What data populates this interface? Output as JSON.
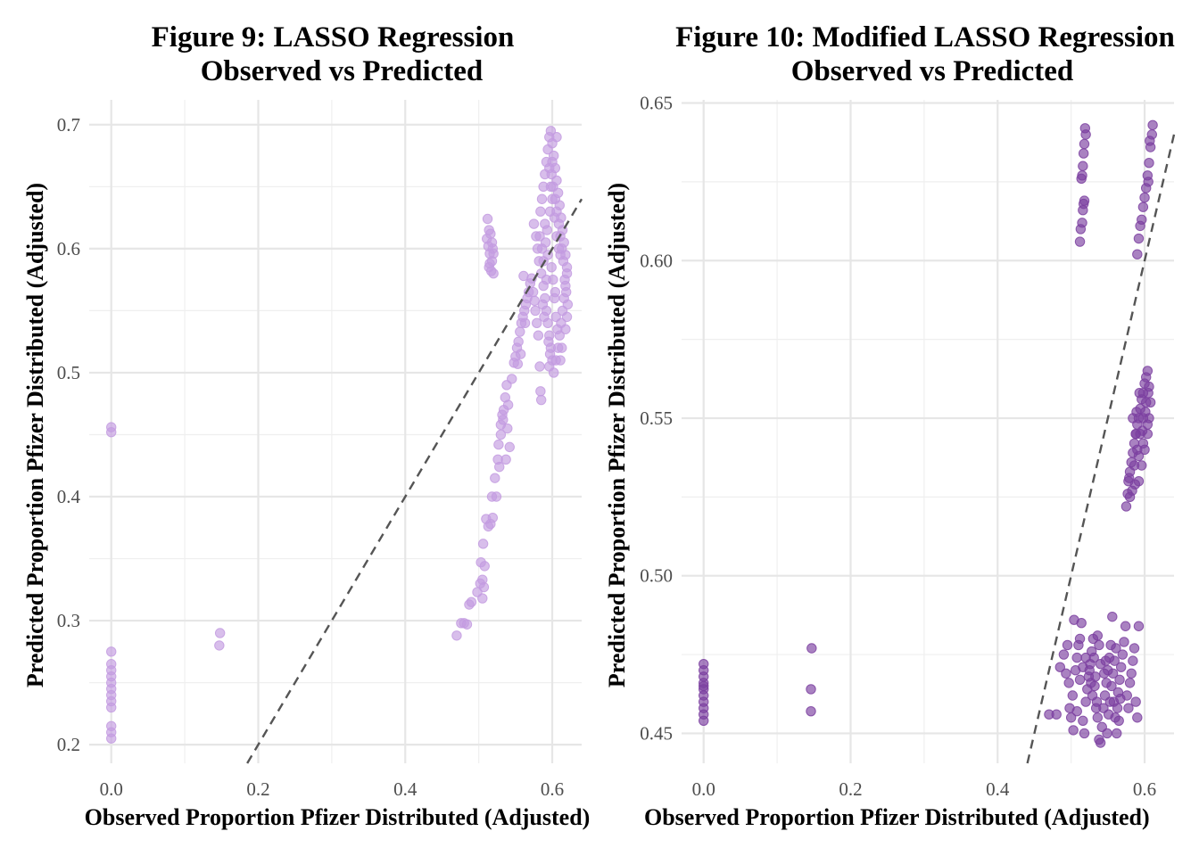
{
  "colors": {
    "fig9_points": "#c39be0",
    "fig10_points": "#7b3fa0",
    "grid_major": "#e6e6e6",
    "grid_minor": "#efefef",
    "reference_line": "#555555"
  },
  "chart_data": [
    {
      "type": "scatter",
      "title_line1": "Figure 9: LASSO Regression",
      "title_line2": "Observed vs Predicted",
      "xlabel": "Observed Proportion Pfizer Distributed (Adjusted)",
      "ylabel": "Predicted Proportion Pfizer Distributed (Adjusted)",
      "xlim": [
        -0.03,
        0.64
      ],
      "ylim": [
        0.185,
        0.72
      ],
      "xticks": [
        0.0,
        0.2,
        0.4,
        0.6
      ],
      "xtick_labels": [
        "0.0",
        "0.2",
        "0.4",
        "0.6"
      ],
      "yticks": [
        0.2,
        0.3,
        0.4,
        0.5,
        0.6,
        0.7
      ],
      "ytick_labels": [
        "0.2",
        "0.3",
        "0.4",
        "0.5",
        "0.6",
        "0.7"
      ],
      "grid": true,
      "reference_line": "y = x, dashed",
      "points": [
        [
          0.0,
          0.456
        ],
        [
          0.0,
          0.452
        ],
        [
          0.0,
          0.275
        ],
        [
          0.0,
          0.265
        ],
        [
          0.0,
          0.26
        ],
        [
          0.0,
          0.255
        ],
        [
          0.0,
          0.25
        ],
        [
          0.0,
          0.245
        ],
        [
          0.0,
          0.24
        ],
        [
          0.0,
          0.235
        ],
        [
          0.0,
          0.23
        ],
        [
          0.0,
          0.215
        ],
        [
          0.0,
          0.21
        ],
        [
          0.0,
          0.205
        ],
        [
          0.148,
          0.29
        ],
        [
          0.147,
          0.28
        ],
        [
          0.47,
          0.288
        ],
        [
          0.476,
          0.298
        ],
        [
          0.48,
          0.298
        ],
        [
          0.484,
          0.297
        ],
        [
          0.487,
          0.313
        ],
        [
          0.49,
          0.315
        ],
        [
          0.498,
          0.323
        ],
        [
          0.502,
          0.33
        ],
        [
          0.505,
          0.333
        ],
        [
          0.507,
          0.327
        ],
        [
          0.505,
          0.318
        ],
        [
          0.503,
          0.347
        ],
        [
          0.508,
          0.344
        ],
        [
          0.506,
          0.362
        ],
        [
          0.51,
          0.382
        ],
        [
          0.513,
          0.376
        ],
        [
          0.516,
          0.378
        ],
        [
          0.519,
          0.383
        ],
        [
          0.518,
          0.4
        ],
        [
          0.524,
          0.4
        ],
        [
          0.522,
          0.415
        ],
        [
          0.526,
          0.43
        ],
        [
          0.528,
          0.424
        ],
        [
          0.527,
          0.442
        ],
        [
          0.53,
          0.45
        ],
        [
          0.53,
          0.458
        ],
        [
          0.533,
          0.462
        ],
        [
          0.534,
          0.47
        ],
        [
          0.536,
          0.48
        ],
        [
          0.538,
          0.49
        ],
        [
          0.54,
          0.474
        ],
        [
          0.542,
          0.44
        ],
        [
          0.537,
          0.43
        ],
        [
          0.539,
          0.455
        ],
        [
          0.532,
          0.466
        ],
        [
          0.545,
          0.495
        ],
        [
          0.548,
          0.508
        ],
        [
          0.55,
          0.513
        ],
        [
          0.552,
          0.52
        ],
        [
          0.554,
          0.525
        ],
        [
          0.556,
          0.533
        ],
        [
          0.558,
          0.54
        ],
        [
          0.56,
          0.545
        ],
        [
          0.562,
          0.55
        ],
        [
          0.564,
          0.555
        ],
        [
          0.566,
          0.56
        ],
        [
          0.568,
          0.565
        ],
        [
          0.57,
          0.572
        ],
        [
          0.572,
          0.576
        ],
        [
          0.561,
          0.578
        ],
        [
          0.553,
          0.507
        ],
        [
          0.557,
          0.515
        ],
        [
          0.563,
          0.54
        ],
        [
          0.512,
          0.624
        ],
        [
          0.514,
          0.615
        ],
        [
          0.516,
          0.612
        ],
        [
          0.518,
          0.605
        ],
        [
          0.513,
          0.602
        ],
        [
          0.519,
          0.6
        ],
        [
          0.515,
          0.596
        ],
        [
          0.518,
          0.59
        ],
        [
          0.514,
          0.585
        ],
        [
          0.517,
          0.582
        ],
        [
          0.52,
          0.58
        ],
        [
          0.511,
          0.608
        ],
        [
          0.52,
          0.596
        ],
        [
          0.515,
          0.588
        ],
        [
          0.575,
          0.62
        ],
        [
          0.578,
          0.61
        ],
        [
          0.58,
          0.6
        ],
        [
          0.582,
          0.59
        ],
        [
          0.584,
          0.63
        ],
        [
          0.586,
          0.64
        ],
        [
          0.588,
          0.65
        ],
        [
          0.59,
          0.66
        ],
        [
          0.592,
          0.67
        ],
        [
          0.594,
          0.68
        ],
        [
          0.596,
          0.69
        ],
        [
          0.598,
          0.695
        ],
        [
          0.6,
          0.685
        ],
        [
          0.602,
          0.675
        ],
        [
          0.604,
          0.665
        ],
        [
          0.606,
          0.655
        ],
        [
          0.608,
          0.645
        ],
        [
          0.61,
          0.635
        ],
        [
          0.612,
          0.625
        ],
        [
          0.614,
          0.615
        ],
        [
          0.616,
          0.605
        ],
        [
          0.618,
          0.595
        ],
        [
          0.62,
          0.585
        ],
        [
          0.585,
          0.58
        ],
        [
          0.588,
          0.57
        ],
        [
          0.59,
          0.56
        ],
        [
          0.592,
          0.55
        ],
        [
          0.594,
          0.54
        ],
        [
          0.596,
          0.53
        ],
        [
          0.598,
          0.52
        ],
        [
          0.6,
          0.51
        ],
        [
          0.602,
          0.5
        ],
        [
          0.605,
          0.51
        ],
        [
          0.608,
          0.52
        ],
        [
          0.61,
          0.53
        ],
        [
          0.612,
          0.54
        ],
        [
          0.614,
          0.55
        ],
        [
          0.616,
          0.56
        ],
        [
          0.618,
          0.57
        ],
        [
          0.62,
          0.58
        ],
        [
          0.603,
          0.56
        ],
        [
          0.605,
          0.545
        ],
        [
          0.607,
          0.535
        ],
        [
          0.595,
          0.525
        ],
        [
          0.597,
          0.515
        ],
        [
          0.583,
          0.505
        ],
        [
          0.584,
          0.485
        ],
        [
          0.585,
          0.478
        ],
        [
          0.59,
          0.62
        ],
        [
          0.593,
          0.615
        ],
        [
          0.597,
          0.63
        ],
        [
          0.6,
          0.64
        ],
        [
          0.603,
          0.625
        ],
        [
          0.606,
          0.61
        ],
        [
          0.609,
          0.6
        ],
        [
          0.611,
          0.595
        ],
        [
          0.591,
          0.605
        ],
        [
          0.594,
          0.595
        ],
        [
          0.599,
          0.585
        ],
        [
          0.601,
          0.575
        ],
        [
          0.604,
          0.565
        ],
        [
          0.587,
          0.555
        ],
        [
          0.589,
          0.545
        ],
        [
          0.577,
          0.55
        ],
        [
          0.579,
          0.54
        ],
        [
          0.581,
          0.53
        ],
        [
          0.574,
          0.565
        ],
        [
          0.576,
          0.558
        ],
        [
          0.599,
          0.66
        ],
        [
          0.601,
          0.65
        ],
        [
          0.604,
          0.64
        ],
        [
          0.606,
          0.63
        ],
        [
          0.609,
          0.62
        ],
        [
          0.611,
          0.61
        ],
        [
          0.613,
          0.6
        ],
        [
          0.615,
          0.59
        ],
        [
          0.617,
          0.575
        ],
        [
          0.619,
          0.565
        ],
        [
          0.621,
          0.555
        ],
        [
          0.62,
          0.545
        ],
        [
          0.618,
          0.535
        ],
        [
          0.613,
          0.52
        ],
        [
          0.611,
          0.51
        ],
        [
          0.596,
          0.505
        ],
        [
          0.592,
          0.575
        ],
        [
          0.588,
          0.59
        ],
        [
          0.586,
          0.6
        ],
        [
          0.583,
          0.61
        ],
        [
          0.6,
          0.67
        ],
        [
          0.598,
          0.65
        ],
        [
          0.606,
          0.69
        ],
        [
          0.596,
          0.665
        ]
      ]
    },
    {
      "type": "scatter",
      "title_line1": "Figure 10: Modified LASSO Regression",
      "title_line2": "Observed vs Predicted",
      "xlabel": "Observed Proportion Pfizer Distributed (Adjusted)",
      "ylabel": "Predicted Proportion Pfizer Distributed (Adjusted)",
      "xlim": [
        -0.03,
        0.64
      ],
      "ylim": [
        0.4405,
        0.651
      ],
      "xticks": [
        0.0,
        0.2,
        0.4,
        0.6
      ],
      "xtick_labels": [
        "0.0",
        "0.2",
        "0.4",
        "0.6"
      ],
      "yticks": [
        0.45,
        0.5,
        0.55,
        0.6,
        0.65
      ],
      "ytick_labels": [
        "0.45",
        "0.50",
        "0.55",
        "0.60",
        "0.65"
      ],
      "grid": true,
      "reference_line": "y = x, dashed",
      "points": [
        [
          0.0,
          0.472
        ],
        [
          0.0,
          0.47
        ],
        [
          0.0,
          0.468
        ],
        [
          0.0,
          0.466
        ],
        [
          0.0,
          0.465
        ],
        [
          0.0,
          0.464
        ],
        [
          0.0,
          0.462
        ],
        [
          0.0,
          0.46
        ],
        [
          0.0,
          0.458
        ],
        [
          0.0,
          0.456
        ],
        [
          0.0,
          0.454
        ],
        [
          0.147,
          0.477
        ],
        [
          0.146,
          0.464
        ],
        [
          0.146,
          0.457
        ],
        [
          0.512,
          0.606
        ],
        [
          0.513,
          0.61
        ],
        [
          0.515,
          0.612
        ],
        [
          0.516,
          0.616
        ],
        [
          0.517,
          0.618
        ],
        [
          0.518,
          0.619
        ],
        [
          0.514,
          0.626
        ],
        [
          0.516,
          0.63
        ],
        [
          0.518,
          0.637
        ],
        [
          0.52,
          0.64
        ],
        [
          0.519,
          0.642
        ],
        [
          0.517,
          0.634
        ],
        [
          0.515,
          0.627
        ],
        [
          0.59,
          0.602
        ],
        [
          0.592,
          0.607
        ],
        [
          0.594,
          0.611
        ],
        [
          0.596,
          0.613
        ],
        [
          0.598,
          0.617
        ],
        [
          0.6,
          0.62
        ],
        [
          0.602,
          0.623
        ],
        [
          0.604,
          0.627
        ],
        [
          0.606,
          0.631
        ],
        [
          0.608,
          0.636
        ],
        [
          0.61,
          0.64
        ],
        [
          0.611,
          0.643
        ],
        [
          0.605,
          0.625
        ],
        [
          0.607,
          0.638
        ],
        [
          0.575,
          0.522
        ],
        [
          0.577,
          0.526
        ],
        [
          0.578,
          0.53
        ],
        [
          0.58,
          0.533
        ],
        [
          0.582,
          0.536
        ],
        [
          0.584,
          0.539
        ],
        [
          0.586,
          0.542
        ],
        [
          0.588,
          0.545
        ],
        [
          0.59,
          0.548
        ],
        [
          0.592,
          0.55
        ],
        [
          0.594,
          0.553
        ],
        [
          0.596,
          0.556
        ],
        [
          0.598,
          0.558
        ],
        [
          0.6,
          0.561
        ],
        [
          0.602,
          0.563
        ],
        [
          0.604,
          0.565
        ],
        [
          0.606,
          0.56
        ],
        [
          0.608,
          0.555
        ],
        [
          0.606,
          0.55
        ],
        [
          0.604,
          0.545
        ],
        [
          0.6,
          0.54
        ],
        [
          0.596,
          0.535
        ],
        [
          0.592,
          0.53
        ],
        [
          0.588,
          0.545
        ],
        [
          0.584,
          0.55
        ],
        [
          0.58,
          0.525
        ],
        [
          0.586,
          0.535
        ],
        [
          0.59,
          0.54
        ],
        [
          0.594,
          0.545
        ],
        [
          0.598,
          0.55
        ],
        [
          0.602,
          0.555
        ],
        [
          0.604,
          0.548
        ],
        [
          0.598,
          0.542
        ],
        [
          0.592,
          0.538
        ],
        [
          0.589,
          0.552
        ],
        [
          0.593,
          0.558
        ],
        [
          0.597,
          0.546
        ],
        [
          0.601,
          0.552
        ],
        [
          0.605,
          0.558
        ],
        [
          0.583,
          0.527
        ],
        [
          0.579,
          0.531
        ],
        [
          0.587,
          0.529
        ],
        [
          0.47,
          0.456
        ],
        [
          0.48,
          0.456
        ],
        [
          0.485,
          0.471
        ],
        [
          0.49,
          0.475
        ],
        [
          0.495,
          0.478
        ],
        [
          0.498,
          0.458
        ],
        [
          0.5,
          0.455
        ],
        [
          0.502,
          0.462
        ],
        [
          0.504,
          0.486
        ],
        [
          0.506,
          0.47
        ],
        [
          0.508,
          0.474
        ],
        [
          0.51,
          0.478
        ],
        [
          0.512,
          0.48
        ],
        [
          0.514,
          0.485
        ],
        [
          0.516,
          0.454
        ],
        [
          0.518,
          0.45
        ],
        [
          0.52,
          0.46
        ],
        [
          0.522,
          0.464
        ],
        [
          0.524,
          0.468
        ],
        [
          0.526,
          0.472
        ],
        [
          0.528,
          0.476
        ],
        [
          0.53,
          0.48
        ],
        [
          0.532,
          0.465
        ],
        [
          0.534,
          0.458
        ],
        [
          0.536,
          0.455
        ],
        [
          0.538,
          0.448
        ],
        [
          0.54,
          0.447
        ],
        [
          0.542,
          0.452
        ],
        [
          0.544,
          0.458
        ],
        [
          0.546,
          0.462
        ],
        [
          0.548,
          0.466
        ],
        [
          0.55,
          0.47
        ],
        [
          0.552,
          0.474
        ],
        [
          0.554,
          0.478
        ],
        [
          0.556,
          0.487
        ],
        [
          0.558,
          0.46
        ],
        [
          0.56,
          0.455
        ],
        [
          0.562,
          0.45
        ],
        [
          0.564,
          0.463
        ],
        [
          0.566,
          0.467
        ],
        [
          0.568,
          0.471
        ],
        [
          0.57,
          0.475
        ],
        [
          0.572,
          0.479
        ],
        [
          0.574,
          0.484
        ],
        [
          0.576,
          0.462
        ],
        [
          0.578,
          0.458
        ],
        [
          0.58,
          0.466
        ],
        [
          0.582,
          0.469
        ],
        [
          0.584,
          0.473
        ],
        [
          0.586,
          0.477
        ],
        [
          0.588,
          0.46
        ],
        [
          0.59,
          0.455
        ],
        [
          0.592,
          0.484
        ],
        [
          0.525,
          0.47
        ],
        [
          0.527,
          0.466
        ],
        [
          0.529,
          0.462
        ],
        [
          0.531,
          0.474
        ],
        [
          0.533,
          0.468
        ],
        [
          0.535,
          0.46
        ],
        [
          0.545,
          0.469
        ],
        [
          0.547,
          0.473
        ],
        [
          0.549,
          0.45
        ],
        [
          0.551,
          0.456
        ],
        [
          0.553,
          0.46
        ],
        [
          0.555,
          0.465
        ],
        [
          0.557,
          0.469
        ],
        [
          0.559,
          0.473
        ],
        [
          0.561,
          0.477
        ],
        [
          0.563,
          0.458
        ],
        [
          0.565,
          0.454
        ],
        [
          0.567,
          0.461
        ],
        [
          0.54,
          0.472
        ],
        [
          0.538,
          0.478
        ],
        [
          0.536,
          0.481
        ],
        [
          0.52,
          0.474
        ],
        [
          0.516,
          0.471
        ],
        [
          0.512,
          0.467
        ],
        [
          0.508,
          0.457
        ],
        [
          0.503,
          0.451
        ],
        [
          0.497,
          0.466
        ],
        [
          0.493,
          0.469
        ]
      ]
    }
  ]
}
